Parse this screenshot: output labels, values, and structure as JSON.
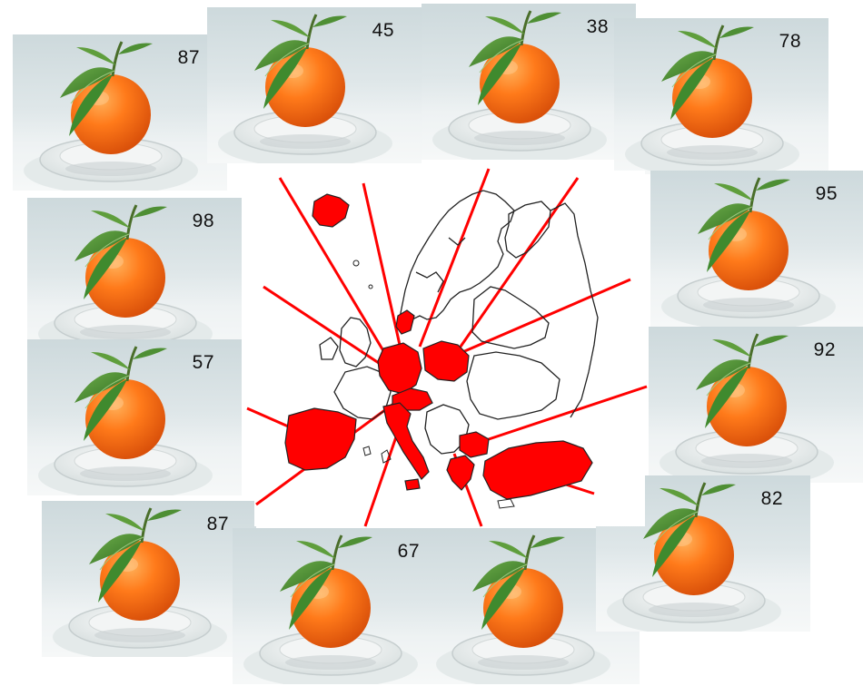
{
  "oranges": [
    {
      "id": "t1",
      "value": "87"
    },
    {
      "id": "t2",
      "value": "45"
    },
    {
      "id": "t3",
      "value": "38"
    },
    {
      "id": "t4",
      "value": "78"
    },
    {
      "id": "t5",
      "value": "98"
    },
    {
      "id": "t6",
      "value": "95"
    },
    {
      "id": "t7",
      "value": "57"
    },
    {
      "id": "t8",
      "value": "92"
    },
    {
      "id": "t9",
      "value": "87"
    },
    {
      "id": "t10",
      "value": "67"
    },
    {
      "id": "t11",
      "value": ""
    },
    {
      "id": "t12",
      "value": "82"
    }
  ],
  "colors": {
    "highlight": "#ff0000",
    "outline": "#222222",
    "orange": "#ff7a1a",
    "leaf": "#3f8a2e"
  }
}
